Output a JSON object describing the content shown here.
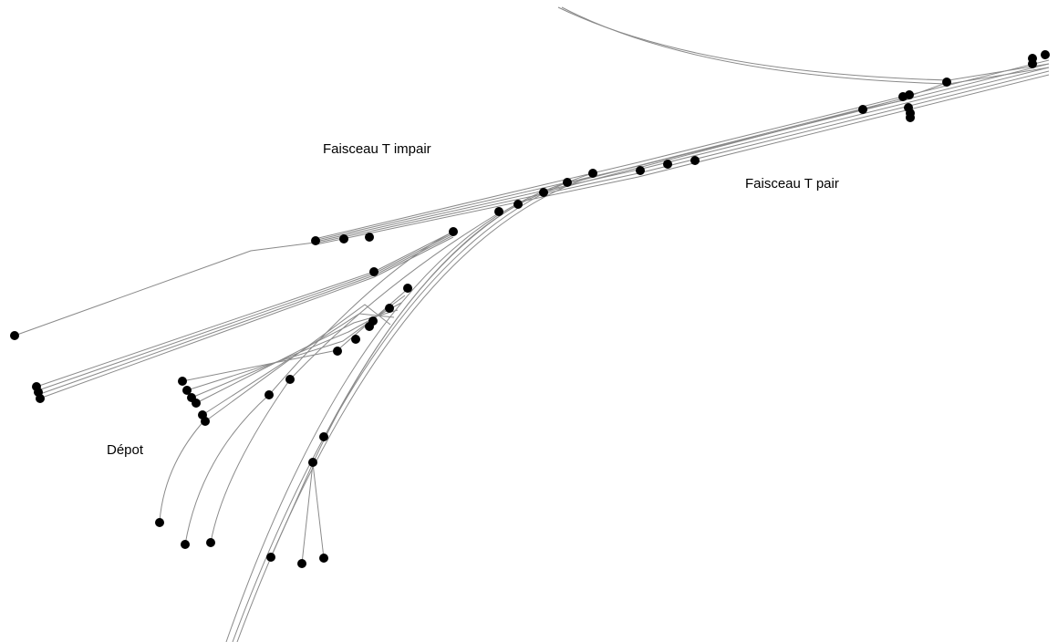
{
  "labels": {
    "faisceau_t_impair": "Faisceau T impair",
    "faisceau_t_pair": "Faisceau T pair",
    "depot": "Dépot"
  },
  "colors": {
    "background": "#ffffff",
    "track": "#8a8a8a",
    "node": "#000000",
    "text": "#000000"
  }
}
